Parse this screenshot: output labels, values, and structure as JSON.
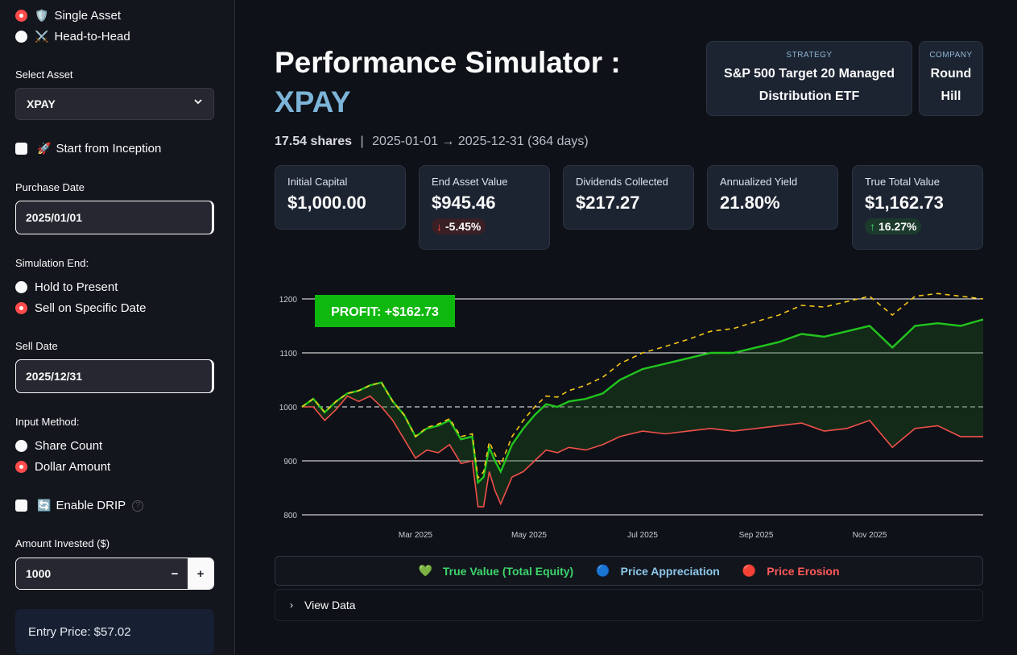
{
  "sidebar": {
    "mode_options": [
      {
        "icon": "🛡️",
        "label": "Single Asset",
        "selected": true
      },
      {
        "icon": "⚔️",
        "label": "Head-to-Head",
        "selected": false
      }
    ],
    "select_asset_label": "Select Asset",
    "select_asset_value": "XPAY",
    "start_inception_label": "Start from Inception",
    "start_inception_icon": "🚀",
    "purchase_date_label": "Purchase Date",
    "purchase_date_value": "2025/01/01",
    "simulation_end_label": "Simulation End:",
    "end_options": [
      {
        "label": "Hold to Present",
        "selected": false
      },
      {
        "label": "Sell on Specific Date",
        "selected": true
      }
    ],
    "sell_date_label": "Sell Date",
    "sell_date_value": "2025/12/31",
    "input_method_label": "Input Method:",
    "input_options": [
      {
        "label": "Share Count",
        "selected": false
      },
      {
        "label": "Dollar Amount",
        "selected": true
      }
    ],
    "drip_label": "Enable DRIP",
    "drip_icon": "🔄",
    "amount_label": "Amount Invested ($)",
    "amount_value": "1000",
    "minus": "−",
    "plus": "+",
    "entry_price": "Entry Price: $57.02"
  },
  "header": {
    "title_line1": "Performance Simulator :",
    "title_line2": "XPAY",
    "strategy_caption": "STRATEGY",
    "strategy_value": "S&P 500 Target 20 Managed Distribution ETF",
    "company_caption": "COMPANY",
    "company_value": "Round Hill",
    "shares": "17.54 shares",
    "separator": "|",
    "date_range": "2025-01-01 → 2025-12-31 (364 days)"
  },
  "metrics": [
    {
      "label": "Initial Capital",
      "value": "$1,000.00"
    },
    {
      "label": "End Asset Value",
      "value": "$945.46",
      "delta": "-5.45%",
      "delta_dir": "down"
    },
    {
      "label": "Dividends Collected",
      "value": "$217.27"
    },
    {
      "label": "Annualized Yield",
      "value": "21.80%"
    },
    {
      "label": "True Total Value",
      "value": "$1,162.73",
      "delta": "16.27%",
      "delta_dir": "up"
    }
  ],
  "legend": [
    {
      "icon": "💚",
      "label": "True Value (Total Equity)",
      "color": "#3dd56d"
    },
    {
      "icon": "🔵",
      "label": "Price Appreciation",
      "color": "#8fc8ea"
    },
    {
      "icon": "🔴",
      "label": "Price Erosion",
      "color": "#ff5a5a"
    }
  ],
  "view_data_label": "View Data",
  "chart_data": {
    "type": "line",
    "annotation": "PROFIT: +$162.73",
    "ylim": [
      800,
      1200
    ],
    "yticks": [
      800,
      900,
      1000,
      1100,
      1200
    ],
    "xticks": [
      "Mar 2025",
      "May 2025",
      "Jul 2025",
      "Sep 2025",
      "Nov 2025"
    ],
    "xtick_months": [
      2,
      4,
      6,
      8,
      10
    ],
    "baseline": 1000,
    "colors": {
      "total": "#22c51e",
      "price": "#f0504a",
      "dashed": "#f5c518"
    },
    "series": [
      {
        "key": "total",
        "months": [
          0,
          0.2,
          0.4,
          0.6,
          0.8,
          1.0,
          1.2,
          1.4,
          1.6,
          1.8,
          2.0,
          2.2,
          2.4,
          2.6,
          2.8,
          3.0,
          3.1,
          3.2,
          3.3,
          3.4,
          3.5,
          3.7,
          3.9,
          4.1,
          4.3,
          4.5,
          4.7,
          5.0,
          5.3,
          5.6,
          6.0,
          6.4,
          6.8,
          7.2,
          7.6,
          8.0,
          8.4,
          8.8,
          9.2,
          9.6,
          10.0,
          10.4,
          10.8,
          11.2,
          11.6,
          12.0
        ],
        "values": [
          1000,
          1015,
          990,
          1010,
          1025,
          1030,
          1040,
          1045,
          1010,
          985,
          945,
          960,
          965,
          975,
          940,
          945,
          860,
          870,
          925,
          900,
          880,
          930,
          960,
          985,
          1005,
          1000,
          1010,
          1015,
          1025,
          1050,
          1070,
          1080,
          1090,
          1100,
          1100,
          1110,
          1120,
          1135,
          1130,
          1140,
          1150,
          1110,
          1150,
          1155,
          1150,
          1162
        ]
      },
      {
        "key": "price",
        "months": [
          0,
          0.2,
          0.4,
          0.6,
          0.8,
          1.0,
          1.2,
          1.4,
          1.6,
          1.8,
          2.0,
          2.2,
          2.4,
          2.6,
          2.8,
          3.0,
          3.1,
          3.2,
          3.3,
          3.4,
          3.5,
          3.7,
          3.9,
          4.1,
          4.3,
          4.5,
          4.7,
          5.0,
          5.3,
          5.6,
          6.0,
          6.4,
          6.8,
          7.2,
          7.6,
          8.0,
          8.4,
          8.8,
          9.2,
          9.6,
          10.0,
          10.4,
          10.8,
          11.2,
          11.6,
          12.0
        ],
        "values": [
          1000,
          1000,
          975,
          995,
          1020,
          1010,
          1020,
          1000,
          975,
          940,
          905,
          920,
          915,
          930,
          895,
          900,
          815,
          815,
          880,
          845,
          820,
          870,
          880,
          900,
          920,
          915,
          925,
          920,
          930,
          945,
          955,
          950,
          955,
          960,
          955,
          960,
          965,
          970,
          955,
          960,
          975,
          925,
          960,
          965,
          945,
          945
        ]
      },
      {
        "key": "dashed",
        "months": [
          0,
          0.2,
          0.4,
          0.6,
          0.8,
          1.0,
          1.2,
          1.4,
          1.6,
          1.8,
          2.0,
          2.2,
          2.4,
          2.6,
          2.8,
          3.0,
          3.1,
          3.2,
          3.3,
          3.4,
          3.5,
          3.7,
          3.9,
          4.1,
          4.3,
          4.5,
          4.7,
          5.0,
          5.3,
          5.6,
          6.0,
          6.4,
          6.8,
          7.2,
          7.6,
          8.0,
          8.4,
          8.8,
          9.2,
          9.6,
          10.0,
          10.4,
          10.8,
          11.2,
          11.6,
          12.0
        ],
        "values": [
          1000,
          1015,
          990,
          1010,
          1025,
          1030,
          1040,
          1045,
          1010,
          985,
          945,
          962,
          968,
          978,
          945,
          950,
          868,
          880,
          935,
          912,
          892,
          945,
          975,
          1000,
          1020,
          1018,
          1030,
          1040,
          1055,
          1080,
          1100,
          1112,
          1125,
          1140,
          1145,
          1158,
          1170,
          1188,
          1185,
          1195,
          1205,
          1170,
          1205,
          1210,
          1205,
          1200
        ]
      }
    ]
  }
}
